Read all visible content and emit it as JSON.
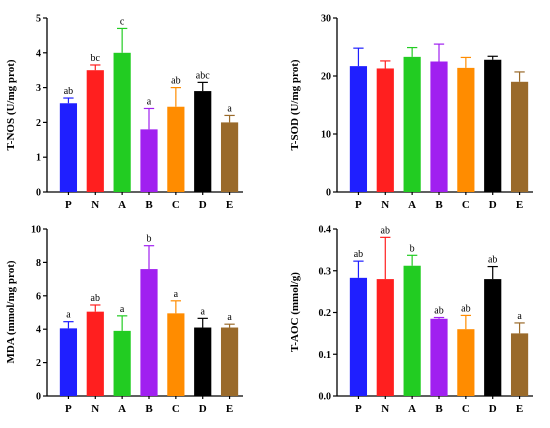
{
  "chart_data": [
    {
      "type": "bar",
      "ylabel": "T-NOS (U/mg prot)",
      "categories": [
        "P",
        "N",
        "A",
        "B",
        "C",
        "D",
        "E"
      ],
      "values": [
        2.55,
        3.5,
        4.0,
        1.8,
        2.45,
        2.9,
        2.0
      ],
      "errors": [
        0.15,
        0.15,
        0.7,
        0.6,
        0.55,
        0.25,
        0.2
      ],
      "labels": [
        "ab",
        "bc",
        "c",
        "a",
        "ab",
        "abc",
        "a"
      ],
      "ylim": [
        0,
        5
      ],
      "yticks": [
        0,
        1,
        2,
        3,
        4,
        5
      ],
      "ytick_labels": [
        "0",
        "1",
        "2",
        "3",
        "4",
        "5"
      ]
    },
    {
      "type": "bar",
      "ylabel": "T-SOD (U/mg prot)",
      "categories": [
        "P",
        "N",
        "A",
        "B",
        "C",
        "D",
        "E"
      ],
      "values": [
        21.7,
        21.3,
        23.3,
        22.5,
        21.4,
        22.8,
        19.0
      ],
      "errors": [
        3.1,
        1.3,
        1.6,
        3.0,
        1.8,
        0.6,
        1.7
      ],
      "labels": [
        "",
        "",
        "",
        "",
        "",
        "",
        ""
      ],
      "ylim": [
        0,
        30
      ],
      "yticks": [
        0,
        10,
        20,
        30
      ],
      "ytick_labels": [
        "0",
        "10",
        "20",
        "30"
      ]
    },
    {
      "type": "bar",
      "ylabel": "MDA (mmol/mg prot)",
      "categories": [
        "P",
        "N",
        "A",
        "B",
        "C",
        "D",
        "E"
      ],
      "values": [
        4.05,
        5.05,
        3.9,
        7.6,
        4.95,
        4.1,
        4.1
      ],
      "errors": [
        0.4,
        0.4,
        0.9,
        1.4,
        0.75,
        0.55,
        0.2
      ],
      "labels": [
        "a",
        "ab",
        "a",
        "b",
        "a",
        "a",
        "a"
      ],
      "ylim": [
        0,
        10
      ],
      "yticks": [
        0,
        2,
        4,
        6,
        8,
        10
      ],
      "ytick_labels": [
        "0",
        "2",
        "4",
        "6",
        "8",
        "10"
      ]
    },
    {
      "type": "bar",
      "ylabel": "T-AOC (mmol/g)",
      "categories": [
        "P",
        "N",
        "A",
        "B",
        "C",
        "D",
        "E"
      ],
      "values": [
        0.283,
        0.28,
        0.312,
        0.185,
        0.16,
        0.28,
        0.15
      ],
      "errors": [
        0.04,
        0.1,
        0.025,
        0.003,
        0.033,
        0.03,
        0.025
      ],
      "labels": [
        "ab",
        "ab",
        "b",
        "ab",
        "ab",
        "ab",
        "a"
      ],
      "ylim": [
        0,
        0.4
      ],
      "yticks": [
        0,
        0.1,
        0.2,
        0.3,
        0.4
      ],
      "ytick_labels": [
        "0.0",
        "0.1",
        "0.2",
        "0.3",
        "0.4"
      ]
    }
  ],
  "colors": [
    "#1f1fff",
    "#ff1f1f",
    "#22cc22",
    "#a020f0",
    "#ff8c00",
    "#000000",
    "#9a6a2a"
  ]
}
